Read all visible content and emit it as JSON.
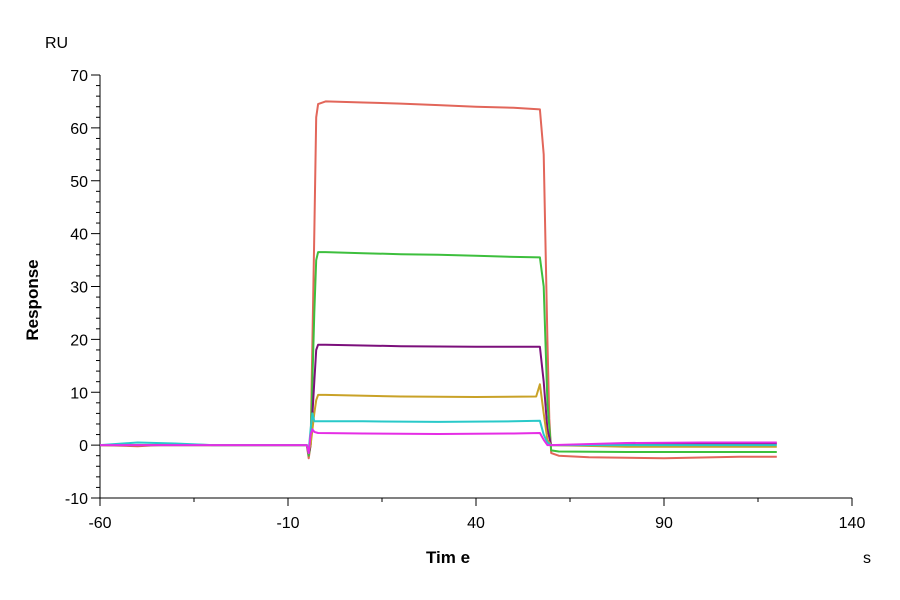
{
  "chart_data": {
    "type": "line",
    "title": "",
    "xlabel": "Tim e",
    "ylabel": "Response",
    "y_unit": "RU",
    "x_unit": "s",
    "xlim": [
      -60,
      140
    ],
    "ylim": [
      -10,
      70
    ],
    "x_ticks": [
      -60,
      -10,
      40,
      90,
      140
    ],
    "y_ticks": [
      -10,
      0,
      10,
      20,
      30,
      40,
      50,
      60,
      70
    ],
    "grid": false,
    "legend": "none",
    "series": [
      {
        "color": "#e2665a",
        "points": [
          [
            -60,
            0
          ],
          [
            -50,
            -0.2
          ],
          [
            -40,
            0.2
          ],
          [
            -30,
            0
          ],
          [
            -20,
            0
          ],
          [
            -5,
            0
          ],
          [
            -4.5,
            -2.5
          ],
          [
            -4,
            0
          ],
          [
            -3,
            40
          ],
          [
            -2.5,
            62
          ],
          [
            -2,
            64.5
          ],
          [
            0,
            65
          ],
          [
            10,
            64.8
          ],
          [
            20,
            64.6
          ],
          [
            30,
            64.3
          ],
          [
            40,
            64
          ],
          [
            50,
            63.8
          ],
          [
            57,
            63.5
          ],
          [
            58,
            55
          ],
          [
            59,
            20
          ],
          [
            59.5,
            5
          ],
          [
            60,
            -1.5
          ],
          [
            62,
            -2
          ],
          [
            70,
            -2.3
          ],
          [
            90,
            -2.5
          ],
          [
            110,
            -2.2
          ],
          [
            120,
            -2.2
          ]
        ]
      },
      {
        "color": "#3dbf3d",
        "points": [
          [
            -60,
            0
          ],
          [
            -20,
            0
          ],
          [
            -5,
            0
          ],
          [
            -4.5,
            -2
          ],
          [
            -4,
            0
          ],
          [
            -3,
            25
          ],
          [
            -2.5,
            35
          ],
          [
            -2,
            36.5
          ],
          [
            0,
            36.5
          ],
          [
            10,
            36.3
          ],
          [
            20,
            36.1
          ],
          [
            30,
            36
          ],
          [
            40,
            35.8
          ],
          [
            50,
            35.6
          ],
          [
            57,
            35.5
          ],
          [
            58,
            30
          ],
          [
            59,
            8
          ],
          [
            60,
            -1
          ],
          [
            62,
            -1.2
          ],
          [
            80,
            -1.3
          ],
          [
            100,
            -1.3
          ],
          [
            120,
            -1.3
          ]
        ]
      },
      {
        "color": "#7b0f7b",
        "points": [
          [
            -60,
            0
          ],
          [
            -20,
            0
          ],
          [
            -5,
            0
          ],
          [
            -4.5,
            -1.5
          ],
          [
            -4,
            0
          ],
          [
            -3,
            12
          ],
          [
            -2.5,
            18
          ],
          [
            -2,
            19
          ],
          [
            0,
            19
          ],
          [
            20,
            18.7
          ],
          [
            40,
            18.6
          ],
          [
            57,
            18.6
          ],
          [
            58,
            12
          ],
          [
            59,
            3
          ],
          [
            60,
            0
          ],
          [
            70,
            0
          ],
          [
            100,
            0.3
          ],
          [
            120,
            0.3
          ]
        ]
      },
      {
        "color": "#c9a227",
        "points": [
          [
            -60,
            0
          ],
          [
            -20,
            0
          ],
          [
            -5,
            0
          ],
          [
            -4.5,
            -1
          ],
          [
            -4,
            0
          ],
          [
            -3,
            6
          ],
          [
            -2.5,
            8.5
          ],
          [
            -2,
            9.5
          ],
          [
            0,
            9.5
          ],
          [
            20,
            9.2
          ],
          [
            40,
            9.1
          ],
          [
            56,
            9.2
          ],
          [
            57,
            11.5
          ],
          [
            58,
            6
          ],
          [
            59,
            1
          ],
          [
            60,
            0
          ],
          [
            80,
            -0.3
          ],
          [
            100,
            -0.3
          ],
          [
            120,
            -0.3
          ]
        ]
      },
      {
        "color": "#29c9c9",
        "points": [
          [
            -60,
            0
          ],
          [
            -50,
            0.5
          ],
          [
            -40,
            0.3
          ],
          [
            -30,
            0
          ],
          [
            -5,
            0
          ],
          [
            -4.5,
            -1
          ],
          [
            -4,
            3
          ],
          [
            -3.5,
            6
          ],
          [
            -3,
            4.5
          ],
          [
            -2,
            4.5
          ],
          [
            10,
            4.5
          ],
          [
            30,
            4.4
          ],
          [
            50,
            4.5
          ],
          [
            57,
            4.6
          ],
          [
            58,
            2
          ],
          [
            59,
            0.5
          ],
          [
            60,
            0
          ],
          [
            90,
            0
          ],
          [
            120,
            0
          ]
        ]
      },
      {
        "color": "#e52ee5",
        "points": [
          [
            -60,
            0
          ],
          [
            -20,
            0
          ],
          [
            -5,
            0
          ],
          [
            -4.5,
            -1.5
          ],
          [
            -4,
            2
          ],
          [
            -3.5,
            3
          ],
          [
            -3,
            2.5
          ],
          [
            -2,
            2.3
          ],
          [
            10,
            2.2
          ],
          [
            30,
            2.1
          ],
          [
            50,
            2.2
          ],
          [
            57,
            2.3
          ],
          [
            58,
            1
          ],
          [
            59,
            0
          ],
          [
            60,
            0
          ],
          [
            80,
            0.4
          ],
          [
            100,
            0.5
          ],
          [
            120,
            0.5
          ]
        ]
      }
    ]
  }
}
